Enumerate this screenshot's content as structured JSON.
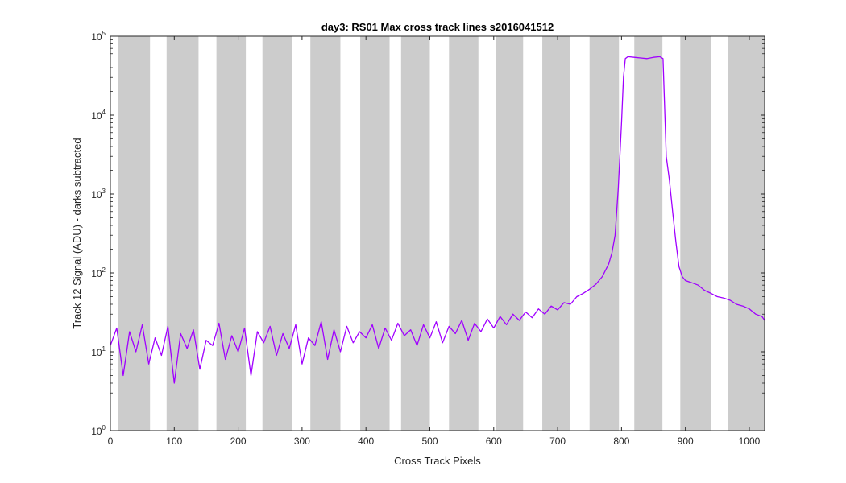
{
  "chart_data": {
    "type": "line",
    "title": "day3: RS01  Max cross track lines  s2016041512",
    "xlabel": "Cross Track Pixels",
    "ylabel": "Track 12 Signal (ADU) - darks subtracted",
    "xlim": [
      0,
      1024
    ],
    "ylim": [
      1,
      100000
    ],
    "yscale": "log",
    "grid": false,
    "x_ticks": [
      {
        "value": 0,
        "label": "0"
      },
      {
        "value": 100,
        "label": "100"
      },
      {
        "value": 200,
        "label": "200"
      },
      {
        "value": 300,
        "label": "300"
      },
      {
        "value": 400,
        "label": "400"
      },
      {
        "value": 500,
        "label": "500"
      },
      {
        "value": 600,
        "label": "600"
      },
      {
        "value": 700,
        "label": "700"
      },
      {
        "value": 800,
        "label": "800"
      },
      {
        "value": 900,
        "label": "900"
      },
      {
        "value": 1000,
        "label": "1000"
      }
    ],
    "y_ticks": [
      {
        "value": 1,
        "base": "10",
        "exp": "0"
      },
      {
        "value": 10,
        "base": "10",
        "exp": "1"
      },
      {
        "value": 100,
        "base": "10",
        "exp": "2"
      },
      {
        "value": 1000,
        "base": "10",
        "exp": "3"
      },
      {
        "value": 10000,
        "base": "10",
        "exp": "4"
      },
      {
        "value": 100000,
        "base": "10",
        "exp": "5"
      }
    ],
    "shaded_regions": [
      [
        12,
        62
      ],
      [
        88,
        138
      ],
      [
        166,
        212
      ],
      [
        238,
        284
      ],
      [
        313,
        360
      ],
      [
        391,
        437
      ],
      [
        455,
        500
      ],
      [
        530,
        576
      ],
      [
        604,
        646
      ],
      [
        676,
        720
      ],
      [
        750,
        796
      ],
      [
        820,
        864
      ],
      [
        892,
        940
      ],
      [
        966,
        1024
      ]
    ],
    "shade_color": "#cccccc",
    "series": [
      {
        "color": "#a000ff",
        "x": [
          0,
          10,
          20,
          30,
          40,
          50,
          60,
          70,
          80,
          90,
          100,
          110,
          120,
          130,
          140,
          150,
          160,
          170,
          180,
          190,
          200,
          210,
          220,
          230,
          240,
          250,
          260,
          270,
          280,
          290,
          300,
          310,
          320,
          330,
          340,
          350,
          360,
          370,
          380,
          390,
          400,
          410,
          420,
          430,
          440,
          450,
          460,
          470,
          480,
          490,
          500,
          510,
          520,
          530,
          540,
          550,
          560,
          570,
          580,
          590,
          600,
          610,
          620,
          630,
          640,
          650,
          660,
          670,
          680,
          690,
          700,
          710,
          720,
          730,
          740,
          750,
          760,
          770,
          780,
          785,
          790,
          795,
          800,
          803,
          806,
          810,
          820,
          830,
          840,
          850,
          860,
          865,
          870,
          875,
          880,
          885,
          890,
          895,
          900,
          910,
          920,
          930,
          940,
          950,
          960,
          970,
          980,
          990,
          1000,
          1010,
          1020,
          1024
        ],
        "y": [
          12,
          20,
          5,
          18,
          10,
          22,
          7,
          15,
          9,
          21,
          4,
          17,
          11,
          19,
          6,
          14,
          12,
          23,
          8,
          16,
          10,
          20,
          5,
          18,
          13,
          21,
          9,
          17,
          11,
          22,
          7,
          15,
          12,
          24,
          8,
          19,
          10,
          21,
          13,
          18,
          15,
          22,
          11,
          20,
          14,
          23,
          16,
          19,
          12,
          22,
          15,
          24,
          13,
          21,
          17,
          25,
          14,
          23,
          18,
          26,
          20,
          28,
          22,
          30,
          25,
          32,
          27,
          35,
          30,
          38,
          34,
          42,
          40,
          50,
          55,
          62,
          72,
          90,
          130,
          180,
          300,
          1200,
          8000,
          30000,
          52000,
          55000,
          54000,
          53000,
          52000,
          54000,
          55000,
          52000,
          3000,
          1500,
          600,
          250,
          120,
          90,
          80,
          75,
          70,
          60,
          55,
          50,
          48,
          45,
          40,
          38,
          35,
          30,
          28,
          25
        ]
      }
    ]
  }
}
